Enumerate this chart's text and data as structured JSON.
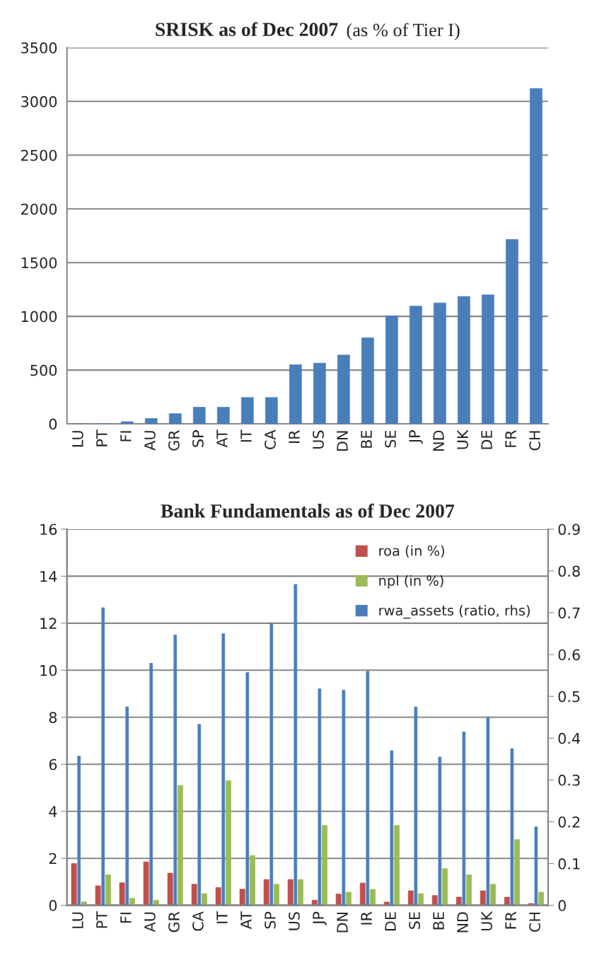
{
  "chart_data": [
    {
      "type": "bar",
      "title": "SRISK as of Dec 2007",
      "subtitle": "(as % of Tier I)",
      "categories": [
        "LU",
        "PT",
        "FI",
        "AU",
        "GR",
        "SP",
        "AT",
        "IT",
        "CA",
        "IR",
        "US",
        "DN",
        "BE",
        "SE",
        "JP",
        "ND",
        "UK",
        "DE",
        "FR",
        "CH"
      ],
      "series": [
        {
          "color": "#4a7ebb",
          "values": [
            0,
            0,
            20,
            50,
            95,
            155,
            155,
            245,
            245,
            550,
            565,
            640,
            800,
            1005,
            1095,
            1125,
            1185,
            1200,
            1715,
            3120
          ]
        }
      ],
      "ylim": [
        0,
        3500
      ],
      "yticks": [
        0,
        500,
        1000,
        1500,
        2000,
        2500,
        3000,
        3500
      ],
      "grid": "y",
      "legend": false
    },
    {
      "type": "bar",
      "title": "Bank Fundamentals as of Dec 2007",
      "categories": [
        "LU",
        "PT",
        "FI",
        "AU",
        "GR",
        "CA",
        "IT",
        "AT",
        "SP",
        "US",
        "JP",
        "DN",
        "IR",
        "DE",
        "SE",
        "BE",
        "ND",
        "UK",
        "FR",
        "CH"
      ],
      "series": [
        {
          "name": "roa (in %)",
          "color": "#c0504d",
          "values": [
            1.78,
            0.83,
            0.96,
            1.85,
            1.37,
            0.9,
            0.76,
            0.69,
            1.1,
            1.1,
            0.22,
            0.48,
            0.95,
            0.14,
            0.62,
            0.42,
            0.35,
            0.62,
            0.35,
            0.08
          ]
        },
        {
          "name": "npl (in %)",
          "color": "#9bbb59",
          "values": [
            0.15,
            1.3,
            0.3,
            0.22,
            5.1,
            0.5,
            5.3,
            2.12,
            0.9,
            1.1,
            3.4,
            0.56,
            0.68,
            3.4,
            0.5,
            1.56,
            1.3,
            0.9,
            2.8,
            0.56
          ]
        },
        {
          "name": "rwa_assets (ratio, rhs)",
          "color": "#4a7ebb",
          "axis": "y2",
          "values": [
            0.357,
            0.712,
            0.475,
            0.579,
            0.647,
            0.433,
            0.65,
            0.557,
            0.675,
            0.768,
            0.518,
            0.515,
            0.56,
            0.37,
            0.475,
            0.355,
            0.415,
            0.45,
            0.375,
            0.188
          ]
        }
      ],
      "ylim": [
        0,
        16
      ],
      "yticks": [
        0,
        2,
        4,
        6,
        8,
        10,
        12,
        14,
        16
      ],
      "y2lim": [
        0,
        0.9
      ],
      "y2ticks": [
        0,
        0.1,
        0.2,
        0.3,
        0.4,
        0.5,
        0.6,
        0.7,
        0.8,
        0.9
      ],
      "grid": "y",
      "legend": "top right"
    }
  ]
}
